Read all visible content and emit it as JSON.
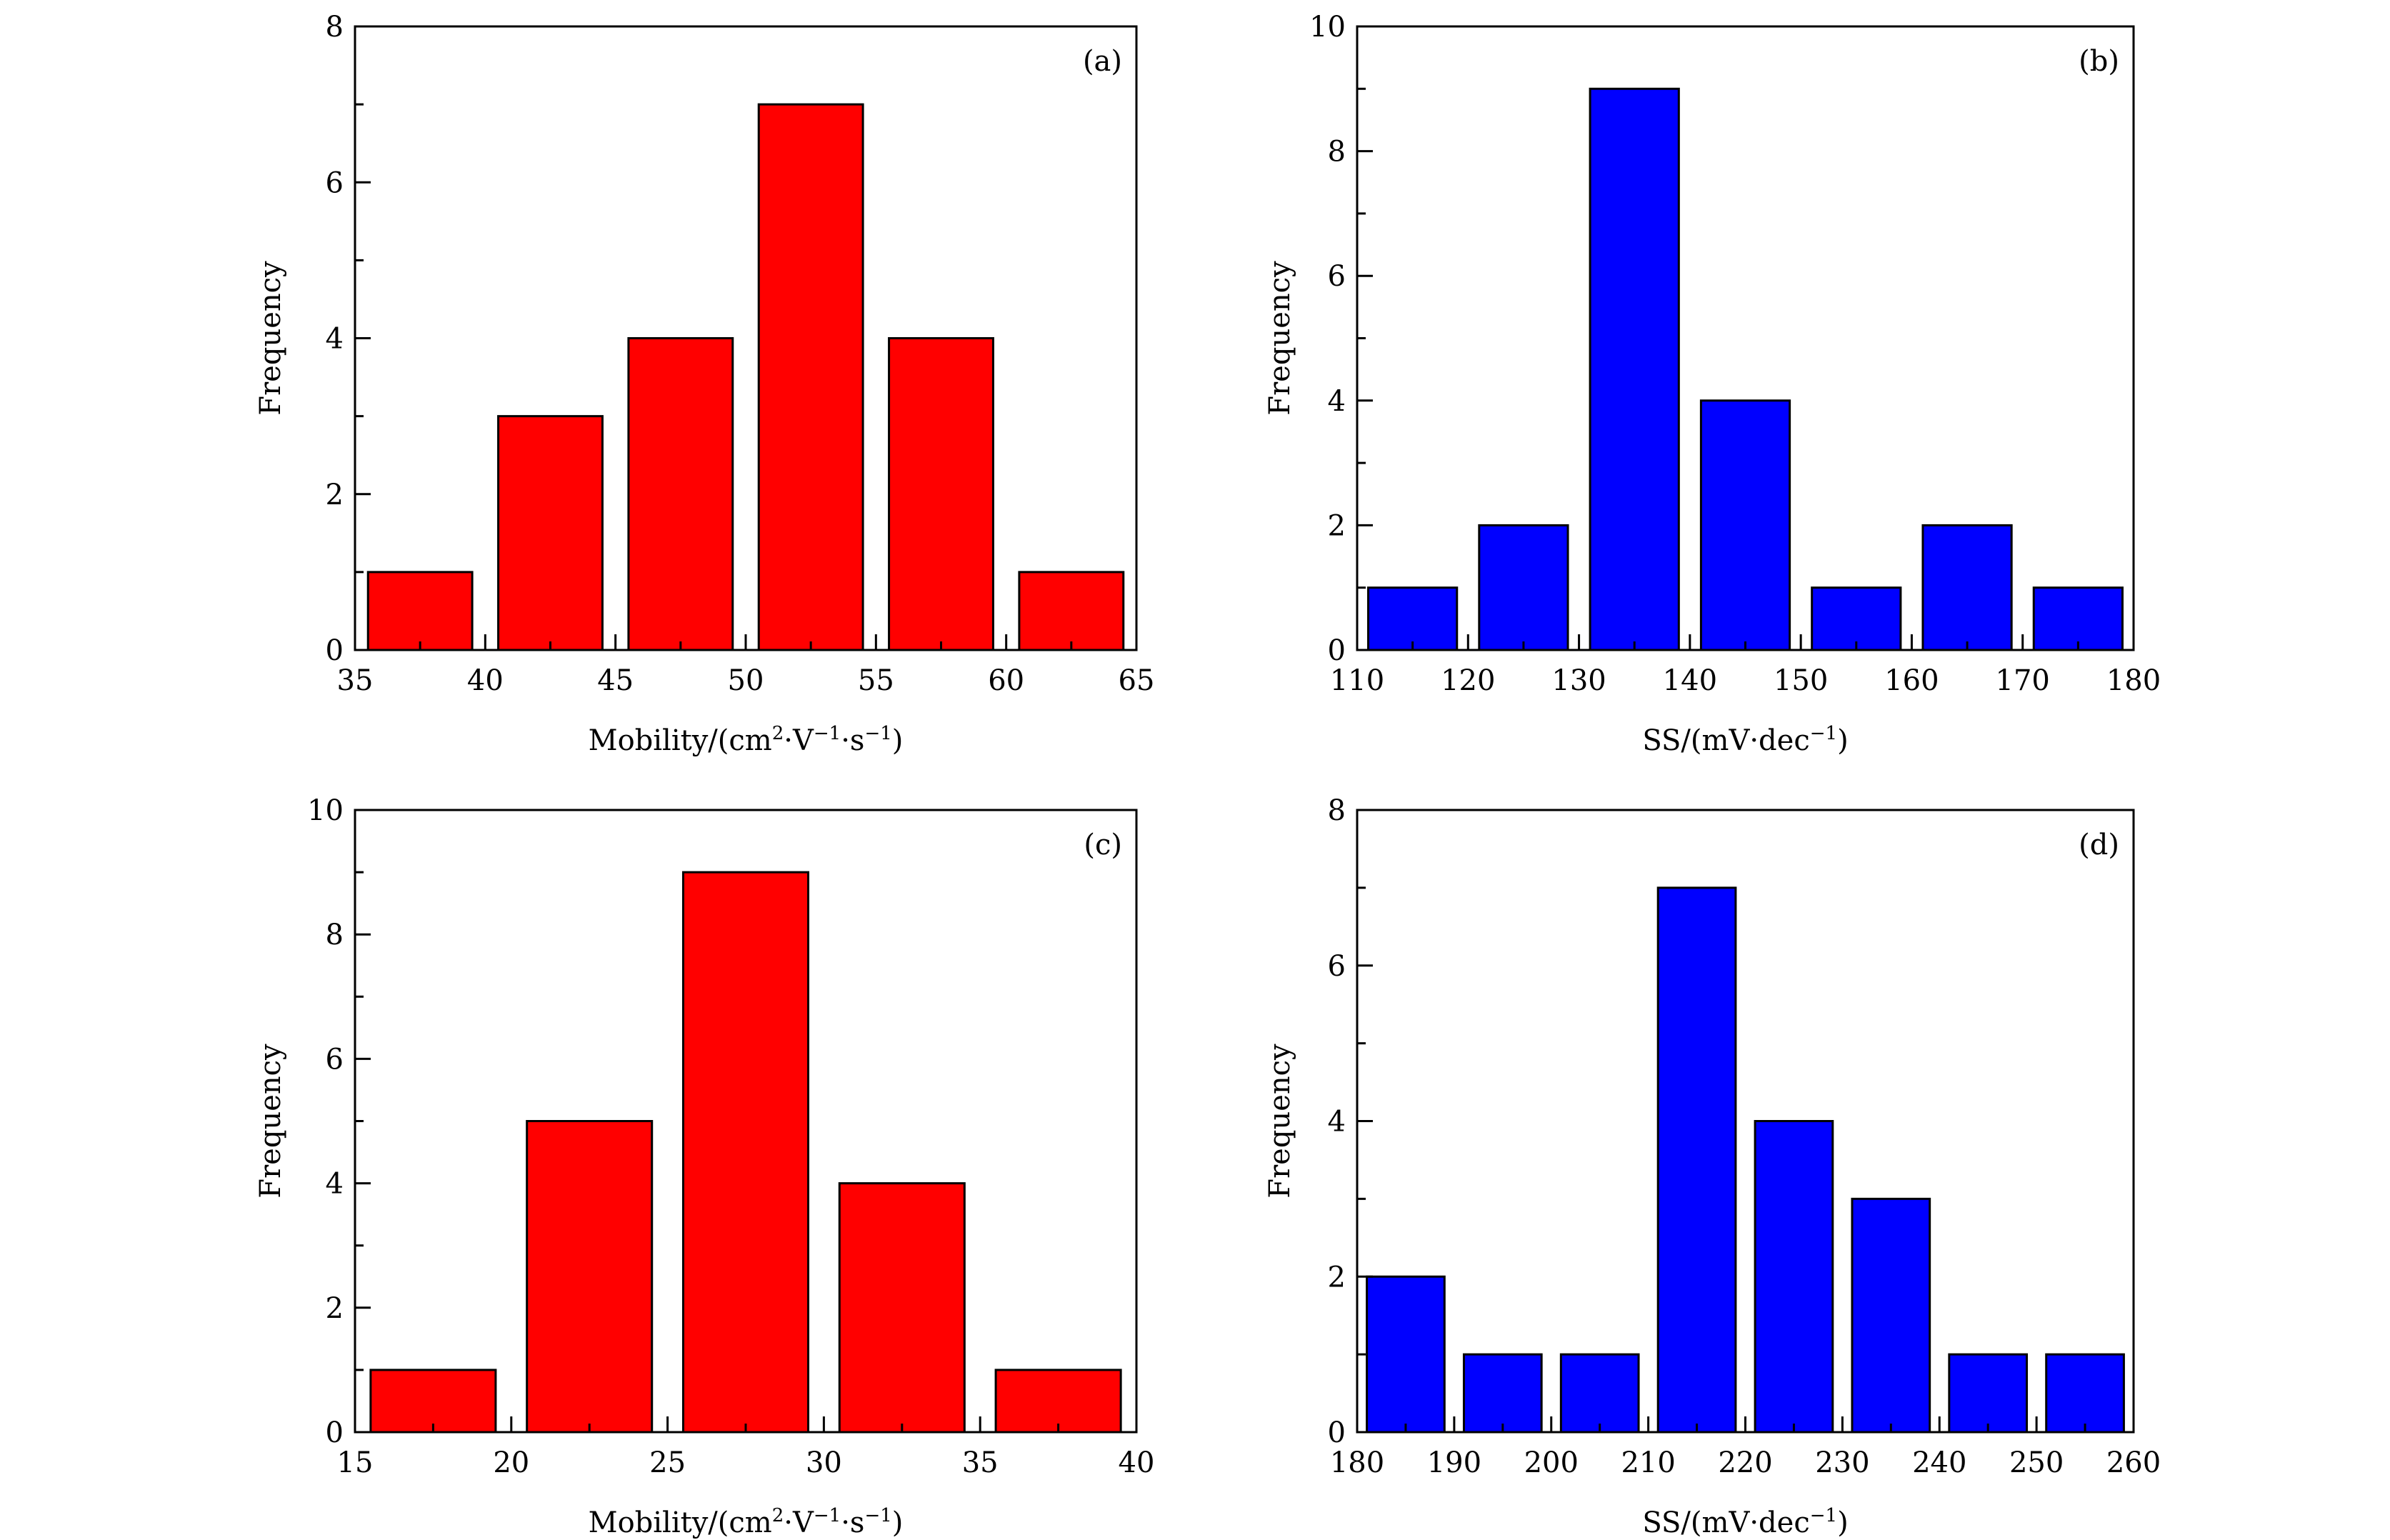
{
  "chart_data": [
    {
      "id": "a",
      "type": "bar",
      "panel_label": "(a)",
      "xlabel": "Mobility/(cm²·V⁻¹·s⁻¹)",
      "ylabel": "Frequency",
      "xlim": [
        35,
        65
      ],
      "ylim": [
        0,
        8
      ],
      "xticks": [
        35,
        40,
        45,
        50,
        55,
        60,
        65
      ],
      "yticks": [
        0,
        2,
        4,
        6,
        8
      ],
      "bin_edges": [
        35,
        40,
        45,
        50,
        55,
        60,
        65
      ],
      "values": [
        1,
        3,
        4,
        7,
        4,
        1
      ],
      "color": "#ff0000"
    },
    {
      "id": "b",
      "type": "bar",
      "panel_label": "(b)",
      "xlabel": "SS/(mV·dec⁻¹)",
      "ylabel": "Frequency",
      "xlim": [
        110,
        180
      ],
      "ylim": [
        0,
        10
      ],
      "xticks": [
        110,
        120,
        130,
        140,
        150,
        160,
        170,
        180
      ],
      "yticks": [
        0,
        2,
        4,
        6,
        8,
        10
      ],
      "bin_edges": [
        110,
        120,
        130,
        140,
        150,
        160,
        170,
        180
      ],
      "values": [
        1,
        2,
        9,
        4,
        1,
        2,
        1
      ],
      "color": "#0000ff"
    },
    {
      "id": "c",
      "type": "bar",
      "panel_label": "(c)",
      "xlabel": "Mobility/(cm²·V⁻¹·s⁻¹)",
      "ylabel": "Frequency",
      "xlim": [
        15,
        40
      ],
      "ylim": [
        0,
        10
      ],
      "xticks": [
        15,
        20,
        25,
        30,
        35,
        40
      ],
      "yticks": [
        0,
        2,
        4,
        6,
        8,
        10
      ],
      "bin_edges": [
        15,
        20,
        25,
        30,
        35,
        40
      ],
      "values": [
        1,
        5,
        9,
        4,
        1
      ],
      "color": "#ff0000"
    },
    {
      "id": "d",
      "type": "bar",
      "panel_label": "(d)",
      "xlabel": "SS/(mV·dec⁻¹)",
      "ylabel": "Frequency",
      "xlim": [
        180,
        260
      ],
      "ylim": [
        0,
        8
      ],
      "xticks": [
        180,
        190,
        200,
        210,
        220,
        230,
        240,
        250,
        260
      ],
      "yticks": [
        0,
        2,
        4,
        6,
        8
      ],
      "bin_edges": [
        180,
        190,
        200,
        210,
        220,
        230,
        240,
        250,
        260
      ],
      "values": [
        2,
        1,
        1,
        7,
        4,
        3,
        1,
        1
      ],
      "color": "#0000ff"
    }
  ]
}
